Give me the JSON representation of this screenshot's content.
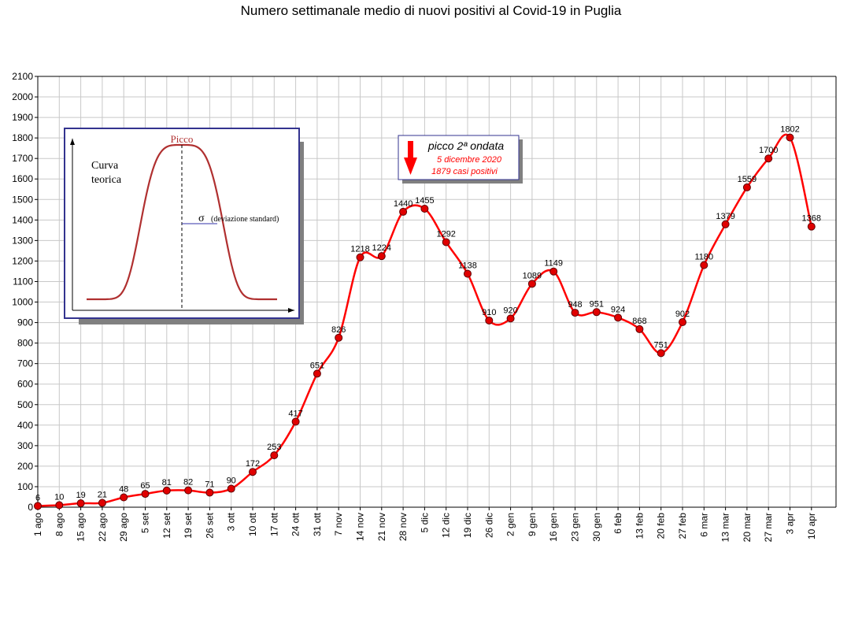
{
  "chart_data": {
    "type": "line",
    "title": "Numero settimanale medio di nuovi positivi al Covid-19 in Puglia",
    "xlabel": "",
    "ylabel": "",
    "ylim": [
      0,
      2100
    ],
    "ytick_step": 100,
    "grid": true,
    "line_color": "#ff0000",
    "marker_color": "#e00000",
    "categories": [
      "1 ago",
      "8 ago",
      "15 ago",
      "22 ago",
      "29 ago",
      "5 set",
      "12 set",
      "19 set",
      "26 set",
      "3 ott",
      "10 ott",
      "17 ott",
      "24 ott",
      "31 ott",
      "7 nov",
      "14 nov",
      "21 nov",
      "28 nov",
      "5 dic",
      "12 dic",
      "19 dic",
      "26 dic",
      "2 gen",
      "9 gen",
      "16 gen",
      "23 gen",
      "30 gen",
      "6 feb",
      "13 feb",
      "20 feb",
      "27 feb",
      "6 mar",
      "13 mar",
      "20 mar",
      "27 mar",
      "3 apr",
      "10 apr"
    ],
    "series": [
      {
        "values": [
          6,
          10,
          19,
          21,
          48,
          65,
          81,
          82,
          71,
          90,
          172,
          253,
          417,
          651,
          826,
          1218,
          1224,
          1440,
          1455,
          1292,
          1138,
          910,
          920,
          1089,
          1149,
          948,
          951,
          924,
          868,
          751,
          902,
          1180,
          1379,
          1559,
          1700,
          1802,
          1368
        ]
      }
    ],
    "annotation": {
      "title": "picco 2ª ondata",
      "date": "5 dicembre 2020",
      "cases": "1879 casi positivi"
    },
    "inset": {
      "curve_label_line1": "Curva",
      "curve_label_line2": "teorica",
      "peak_label": "Picco",
      "sigma_symbol": "σ",
      "sigma_label": "(deviazione standard)"
    }
  }
}
